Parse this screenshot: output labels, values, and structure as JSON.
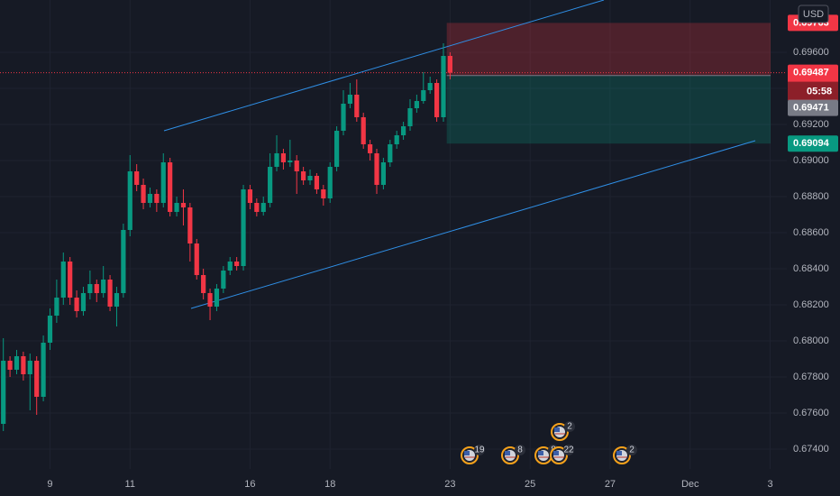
{
  "chart_data": {
    "type": "candlestick",
    "currency": "USD",
    "countdown": "05:58",
    "up_color": "#089981",
    "down_color": "#f23645",
    "grid": true,
    "ylim": [
      0.6729,
      0.6989
    ],
    "yticks": [
      {
        "value": 0.674,
        "label": "0.67400"
      },
      {
        "value": 0.676,
        "label": "0.67600"
      },
      {
        "value": 0.678,
        "label": "0.67800"
      },
      {
        "value": 0.68,
        "label": "0.68000"
      },
      {
        "value": 0.682,
        "label": "0.68200"
      },
      {
        "value": 0.684,
        "label": "0.68400"
      },
      {
        "value": 0.686,
        "label": "0.68600"
      },
      {
        "value": 0.688,
        "label": "0.68800"
      },
      {
        "value": 0.69,
        "label": "0.69000"
      },
      {
        "value": 0.692,
        "label": "0.69200"
      },
      {
        "value": 0.694,
        "label": "0.69400"
      },
      {
        "value": 0.696,
        "label": "0.69600"
      }
    ],
    "position": {
      "stop": 0.69763,
      "entry": 0.69471,
      "target": 0.69094
    },
    "events": [
      19,
      8,
      8,
      22,
      2,
      2
    ],
    "categories": [
      null,
      null,
      null,
      null,
      null,
      null,
      null,
      "9",
      null,
      null,
      null,
      null,
      null,
      null,
      null,
      null,
      null,
      null,
      null,
      "11",
      null,
      null,
      null,
      null,
      null,
      null,
      null,
      null,
      null,
      null,
      null,
      null,
      null,
      null,
      null,
      null,
      null,
      "16",
      null,
      null,
      null,
      null,
      null,
      null,
      null,
      null,
      null,
      null,
      null,
      "18",
      null,
      null,
      null,
      null,
      null,
      null,
      null,
      null,
      null,
      null,
      null,
      null,
      null,
      null,
      null,
      null,
      null,
      "23",
      null,
      null,
      null,
      null,
      null,
      null,
      null,
      null,
      null,
      null,
      null,
      "25",
      null,
      null,
      null,
      null,
      null,
      null,
      null,
      null,
      null,
      null,
      null,
      "27",
      null,
      null,
      null,
      null,
      null,
      null,
      null,
      null,
      null,
      null,
      null,
      "Dec",
      null,
      null,
      null,
      null,
      null,
      null,
      null,
      null,
      null,
      null,
      null,
      "3",
      null,
      null
    ],
    "open": [
      0.6754,
      0.6789,
      0.6784,
      0.67915,
      0.67815,
      0.6789,
      0.6769,
      0.6799,
      0.6814,
      0.6824,
      0.6844,
      0.6824,
      0.68165,
      0.68265,
      0.68315,
      0.68265,
      0.6834,
      0.6819,
      0.68265,
      0.68615,
      0.6894,
      0.68865,
      0.68765,
      0.68815,
      0.68765,
      0.6899,
      0.68715,
      0.68765,
      0.6874,
      0.6854,
      0.68365,
      0.68265,
      0.6819,
      0.6829,
      0.6839,
      0.6844,
      0.68415,
      0.6884,
      0.68765,
      0.68715,
      0.68765,
      0.68965,
      0.6904,
      0.6899,
      0.69,
      0.6894,
      0.6889,
      0.68915,
      0.6884,
      0.6879,
      0.68965,
      0.69165,
      0.69315,
      0.69365,
      0.6924,
      0.6909,
      0.6904,
      0.68865,
      0.6899,
      0.6909,
      0.6914,
      0.6919,
      0.6929,
      0.6933,
      0.6939,
      0.6943,
      0.6924,
      0.6958,
      null,
      null,
      null,
      null,
      null,
      null,
      null,
      null,
      null,
      null,
      null,
      null,
      null,
      null,
      null,
      null,
      null,
      null,
      null,
      null,
      null,
      null,
      null,
      null,
      null,
      null,
      null,
      null,
      null,
      null,
      null,
      null,
      null,
      null,
      null,
      null,
      null,
      null,
      null,
      null,
      null,
      null,
      null,
      null,
      null,
      null,
      null,
      null,
      null,
      null
    ],
    "high": [
      0.68015,
      0.67915,
      0.6795,
      0.6794,
      0.6793,
      0.67915,
      0.6803,
      0.6818,
      0.6834,
      0.6849,
      0.68465,
      0.6828,
      0.683,
      0.6839,
      0.6834,
      0.68415,
      0.68365,
      0.683,
      0.6865,
      0.6903,
      0.6898,
      0.689,
      0.6885,
      0.6884,
      0.6904,
      0.69015,
      0.688,
      0.6884,
      0.68765,
      0.68565,
      0.684,
      0.6829,
      0.68315,
      0.68415,
      0.68465,
      0.68465,
      0.68865,
      0.68865,
      0.6879,
      0.688,
      0.6904,
      0.6914,
      0.69065,
      0.69115,
      0.6903,
      0.68965,
      0.6895,
      0.6893,
      0.68865,
      0.6899,
      0.6919,
      0.6939,
      0.6943,
      0.6945,
      0.69265,
      0.69115,
      0.69065,
      0.69015,
      0.69115,
      0.69165,
      0.69215,
      0.6934,
      0.69365,
      0.6949,
      0.69465,
      0.6945,
      0.6965,
      0.696,
      null,
      null,
      null,
      null,
      null,
      null,
      null,
      null,
      null,
      null,
      null,
      null,
      null,
      null,
      null,
      null,
      null,
      null,
      null,
      null,
      null,
      null,
      null,
      null,
      null,
      null,
      null,
      null,
      null,
      null,
      null,
      null,
      null,
      null,
      null,
      null,
      null,
      null,
      null,
      null,
      null,
      null,
      null,
      null,
      null,
      null,
      null,
      null,
      null,
      null
    ],
    "low": [
      0.675,
      0.678,
      0.67815,
      0.6778,
      0.67615,
      0.6759,
      0.67665,
      0.6795,
      0.681,
      0.682,
      0.682,
      0.6813,
      0.6814,
      0.6823,
      0.68215,
      0.6824,
      0.68165,
      0.6808,
      0.6824,
      0.6858,
      0.6883,
      0.6873,
      0.6874,
      0.68715,
      0.6874,
      0.6869,
      0.6869,
      0.6864,
      0.6844,
      0.6834,
      0.6823,
      0.68115,
      0.68165,
      0.68265,
      0.68365,
      0.6839,
      0.6839,
      0.6873,
      0.6869,
      0.68695,
      0.6874,
      0.6894,
      0.6895,
      0.68965,
      0.68815,
      0.68865,
      0.68865,
      0.68815,
      0.6875,
      0.68765,
      0.6894,
      0.6914,
      0.6929,
      0.69215,
      0.69065,
      0.69,
      0.68815,
      0.6884,
      0.68965,
      0.69065,
      0.69115,
      0.69165,
      0.69265,
      0.69315,
      0.6937,
      0.69215,
      0.69215,
      0.6945,
      null,
      null,
      null,
      null,
      null,
      null,
      null,
      null,
      null,
      null,
      null,
      null,
      null,
      null,
      null,
      null,
      null,
      null,
      null,
      null,
      null,
      null,
      null,
      null,
      null,
      null,
      null,
      null,
      null,
      null,
      null,
      null,
      null,
      null,
      null,
      null,
      null,
      null,
      null,
      null,
      null,
      null,
      null,
      null,
      null,
      null,
      null,
      null,
      null,
      null
    ],
    "close": [
      0.6789,
      0.6784,
      0.67915,
      0.67815,
      0.6789,
      0.6769,
      0.6799,
      0.6814,
      0.6824,
      0.6844,
      0.6824,
      0.68165,
      0.68265,
      0.68315,
      0.68265,
      0.6834,
      0.6819,
      0.68265,
      0.68615,
      0.6894,
      0.68865,
      0.68765,
      0.68815,
      0.68765,
      0.6899,
      0.68715,
      0.68765,
      0.6874,
      0.6854,
      0.68365,
      0.68265,
      0.6819,
      0.6829,
      0.6839,
      0.6844,
      0.68415,
      0.6884,
      0.68765,
      0.68715,
      0.68765,
      0.68965,
      0.6904,
      0.6899,
      0.69,
      0.6894,
      0.6889,
      0.68915,
      0.6884,
      0.6879,
      0.68965,
      0.69165,
      0.69315,
      0.69365,
      0.6924,
      0.6909,
      0.6904,
      0.68865,
      0.6899,
      0.6909,
      0.6914,
      0.6919,
      0.6929,
      0.6933,
      0.6939,
      0.6943,
      0.6924,
      0.6958,
      0.69487,
      null,
      null,
      null,
      null,
      null,
      null,
      null,
      null,
      null,
      null,
      null,
      null,
      null,
      null,
      null,
      null,
      null,
      null,
      null,
      null,
      null,
      null,
      null,
      null,
      null,
      null,
      null,
      null,
      null,
      null,
      null,
      null,
      null,
      null,
      null,
      null,
      null,
      null,
      null,
      null,
      null,
      null,
      null,
      null,
      null,
      null,
      null,
      null,
      null,
      null
    ]
  }
}
